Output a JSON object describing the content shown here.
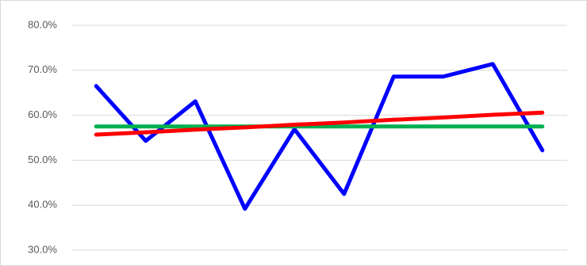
{
  "chart_data": {
    "type": "line",
    "categories": [
      null,
      null,
      null,
      null,
      null,
      null,
      null,
      null,
      null,
      null
    ],
    "series": [
      {
        "color": "#0000ff",
        "values": [
          66.5,
          54.3,
          63.1,
          39.2,
          56.9,
          42.5,
          68.6,
          68.6,
          71.4,
          52.2
        ]
      },
      {
        "color": "#00b050",
        "values": [
          57.5,
          57.5,
          57.5,
          57.5,
          57.5,
          57.5,
          57.5,
          57.5,
          57.5,
          57.5
        ]
      },
      {
        "color": "#ff0000",
        "values": [
          55.7,
          56.2,
          56.8,
          57.3,
          57.9,
          58.4,
          59.0,
          59.5,
          60.1,
          60.6
        ]
      }
    ],
    "ylim": [
      30,
      80
    ],
    "yticks": [
      {
        "value": 30,
        "label": "30.0%"
      },
      {
        "value": 40,
        "label": "40.0%"
      },
      {
        "value": 50,
        "label": "50.0%"
      },
      {
        "value": 60,
        "label": "60.0%"
      },
      {
        "value": 70,
        "label": "70.0%"
      },
      {
        "value": 80,
        "label": "80.0%"
      }
    ],
    "grid": true
  }
}
